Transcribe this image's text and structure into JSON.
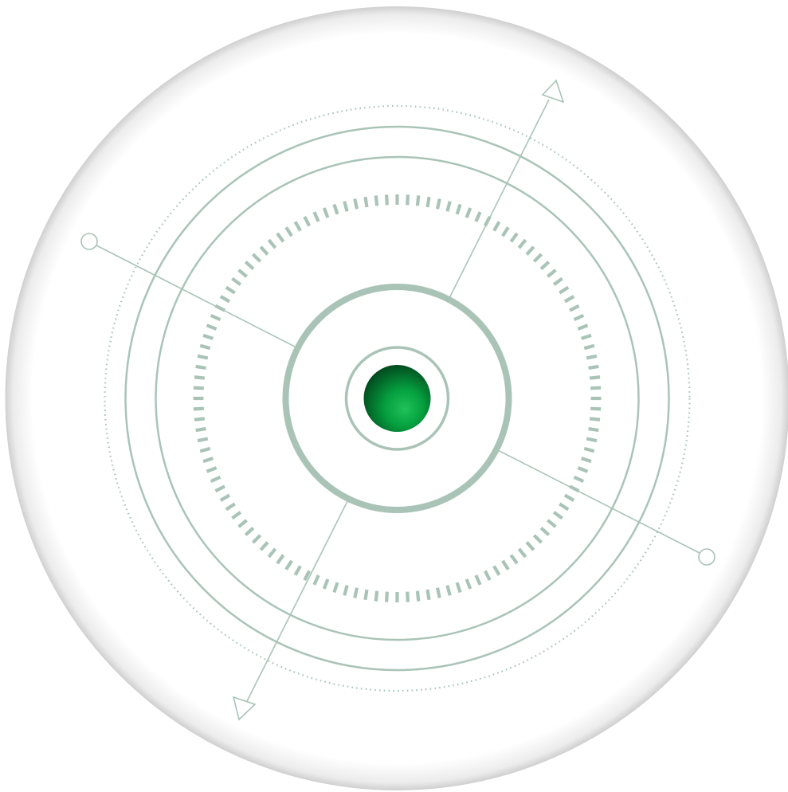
{
  "colors": {
    "background": "#ffffff",
    "disc_fill": "#ffffff",
    "disc_edge_shadow": "#cfcfcf",
    "accent": "#a9c4b7",
    "accent_dark": "#97b5a7",
    "core_light": "#1fc15a",
    "core_mid": "#05a03f",
    "core_dark": "#024d1f"
  },
  "graphic": {
    "description_icon": "target-compass-icon",
    "tick_count": 120,
    "axes": [
      {
        "name": "axis-arrow",
        "end_a": "arrow-head-icon",
        "end_b": "arrow-head-icon"
      },
      {
        "name": "axis-line",
        "end_a": "circle-node-icon",
        "end_b": "circle-node-icon"
      }
    ]
  }
}
